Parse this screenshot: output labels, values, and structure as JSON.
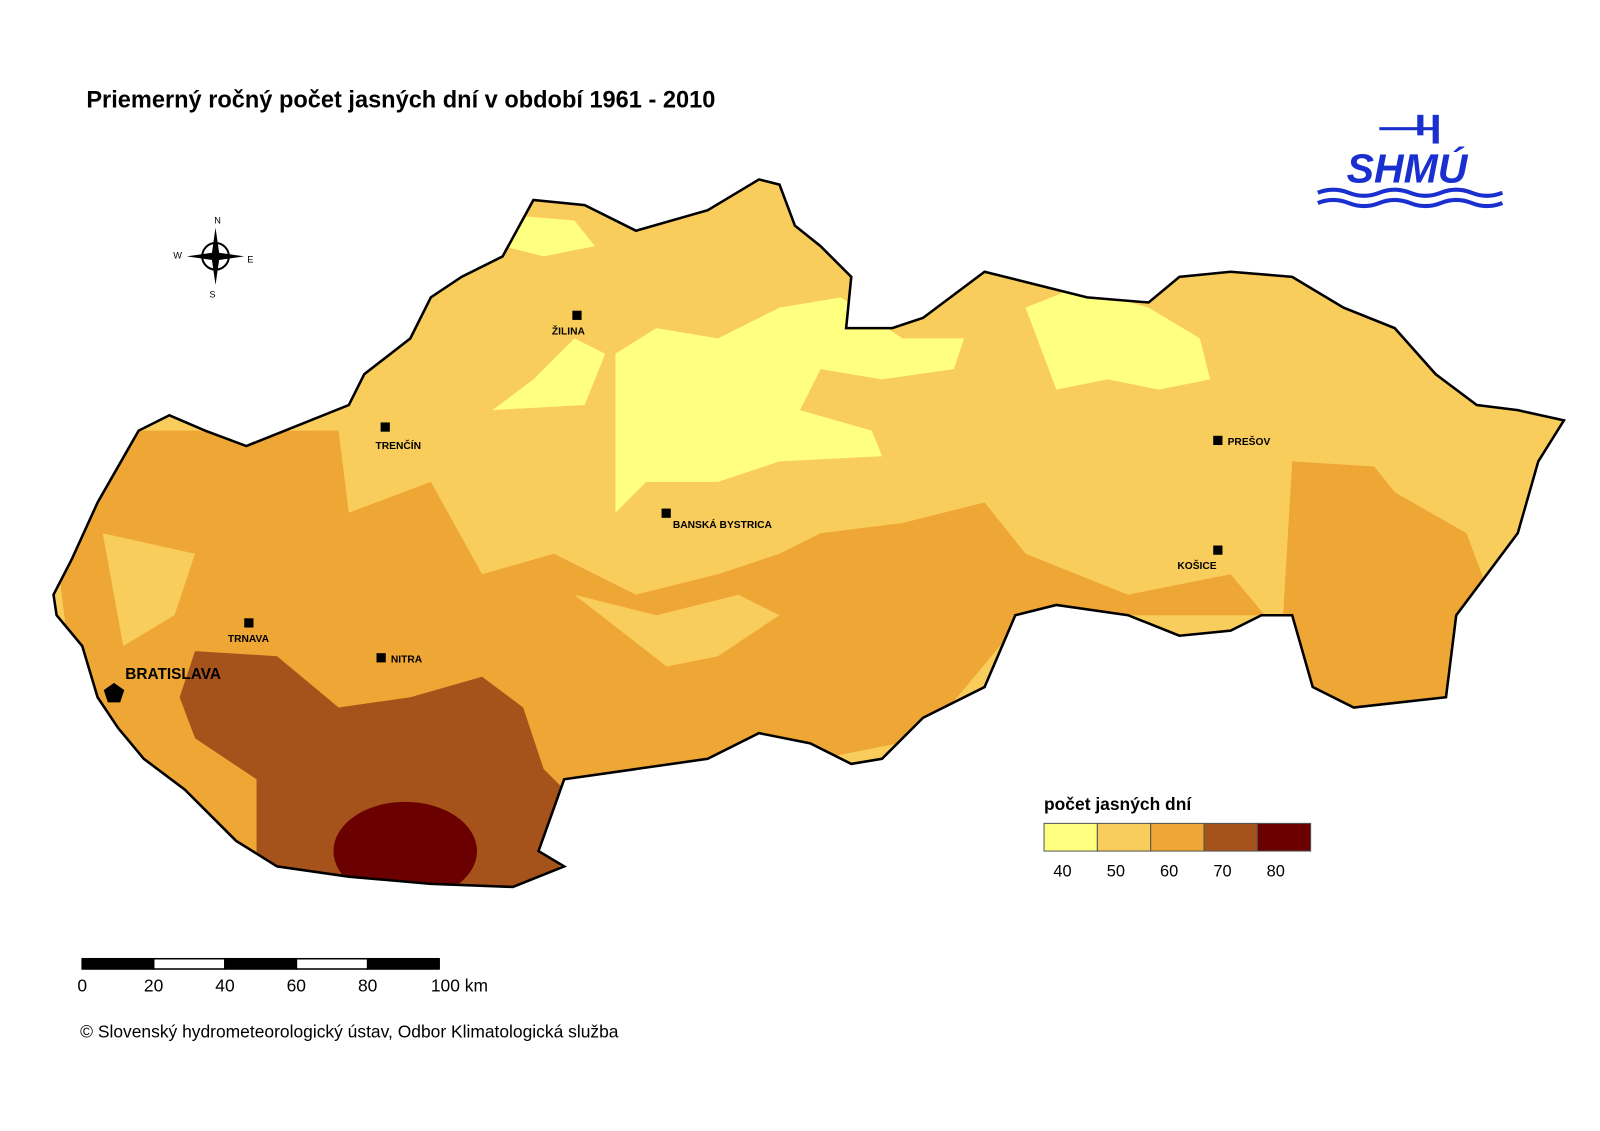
{
  "title": "Priemerný ročný počet jasných dní v období 1961 - 2010",
  "logo": "SHMÚ",
  "compass": {
    "n": "N",
    "e": "E",
    "s": "S",
    "w": "W"
  },
  "cities": [
    "ŽILINA",
    "TRENČÍN",
    "BANSKÁ BYSTRICA",
    "PREŠOV",
    "KOŠICE",
    "TRNAVA",
    "NITRA",
    "BRATISLAVA"
  ],
  "legend": {
    "title": "počet jasných dní",
    "ticks": [
      40,
      50,
      60,
      70,
      80
    ],
    "colors": [
      "#ffff80",
      "#f9cd5c",
      "#eea634",
      "#a6531b",
      "#6a0000"
    ]
  },
  "scale_bar": {
    "ticks": [
      0,
      20,
      40,
      60,
      80,
      {
        "value": 100,
        "label": "100 km"
      }
    ]
  },
  "copyright": "© Slovenský hydrometeorologický ústav, Odbor Klimatologická služba"
}
